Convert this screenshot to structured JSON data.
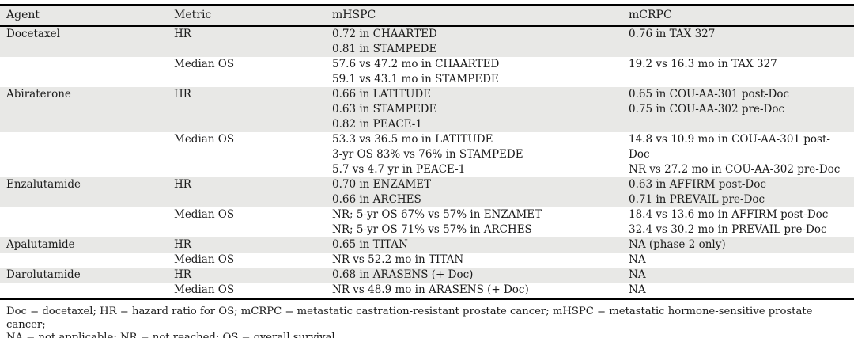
{
  "colors": {
    "row_shade": "#e8e8e6",
    "rule": "#000000",
    "text": "#1b1b1b",
    "background": "#ffffff"
  },
  "table": {
    "columns": [
      "Agent",
      "Metric",
      "mHSPC",
      "mCRPC"
    ],
    "rows": [
      {
        "agent": "Docetaxel",
        "metric": "HR",
        "mhspc": [
          "0.72 in CHAARTED",
          "0.81 in STAMPEDE"
        ],
        "mcrpc": [
          "0.76 in TAX 327"
        ]
      },
      {
        "agent": "",
        "metric": "Median OS",
        "mhspc": [
          "57.6 vs 47.2 mo in CHAARTED",
          "59.1 vs 43.1 mo in STAMPEDE"
        ],
        "mcrpc": [
          "19.2 vs 16.3 mo in TAX 327"
        ]
      },
      {
        "agent": "Abiraterone",
        "metric": "HR",
        "mhspc": [
          "0.66 in LATITUDE",
          "0.63 in STAMPEDE",
          "0.82 in PEACE-1"
        ],
        "mcrpc": [
          "0.65 in COU-AA-301 post-Doc",
          "0.75 in COU-AA-302 pre-Doc"
        ]
      },
      {
        "agent": "",
        "metric": "Median OS",
        "mhspc": [
          "53.3 vs 36.5 mo in LATITUDE",
          "3-yr OS 83% vs 76% in STAMPEDE",
          "5.7 vs 4.7 yr in PEACE-1"
        ],
        "mcrpc": [
          "14.8 vs 10.9 mo in COU-AA-301 post-Doc",
          "NR vs 27.2 mo in COU-AA-302 pre-Doc"
        ]
      },
      {
        "agent": "Enzalutamide",
        "metric": "HR",
        "mhspc": [
          "0.70 in ENZAMET",
          "0.66 in ARCHES"
        ],
        "mcrpc": [
          "0.63 in AFFIRM post-Doc",
          "0.71 in PREVAIL pre-Doc"
        ]
      },
      {
        "agent": "",
        "metric": "Median OS",
        "mhspc": [
          "NR; 5-yr OS 67% vs 57% in ENZAMET",
          "NR; 5-yr OS 71% vs 57% in ARCHES"
        ],
        "mcrpc": [
          "18.4 vs 13.6 mo in AFFIRM post-Doc",
          "32.4 vs 30.2 mo in PREVAIL pre-Doc"
        ]
      },
      {
        "agent": "Apalutamide",
        "metric": "HR",
        "mhspc": [
          "0.65 in TITAN"
        ],
        "mcrpc": [
          "NA (phase 2 only)"
        ]
      },
      {
        "agent": "",
        "metric": "Median OS",
        "mhspc": [
          "NR vs 52.2 mo in TITAN"
        ],
        "mcrpc": [
          "NA"
        ]
      },
      {
        "agent": "Darolutamide",
        "metric": "HR",
        "mhspc": [
          "0.68 in ARASENS (+ Doc)"
        ],
        "mcrpc": [
          "NA"
        ]
      },
      {
        "agent": "",
        "metric": "Median OS",
        "mhspc": [
          "NR vs 48.9 mo in ARASENS (+ Doc)"
        ],
        "mcrpc": [
          "NA"
        ]
      }
    ]
  },
  "footnote": {
    "lines": [
      "Doc = docetaxel; HR = hazard ratio for OS; mCRPC = metastatic castration-resistant prostate cancer; mHSPC = metastatic hormone-sensitive prostate cancer;",
      "NA = not applicable; NR = not reached; OS = overall survival."
    ]
  }
}
